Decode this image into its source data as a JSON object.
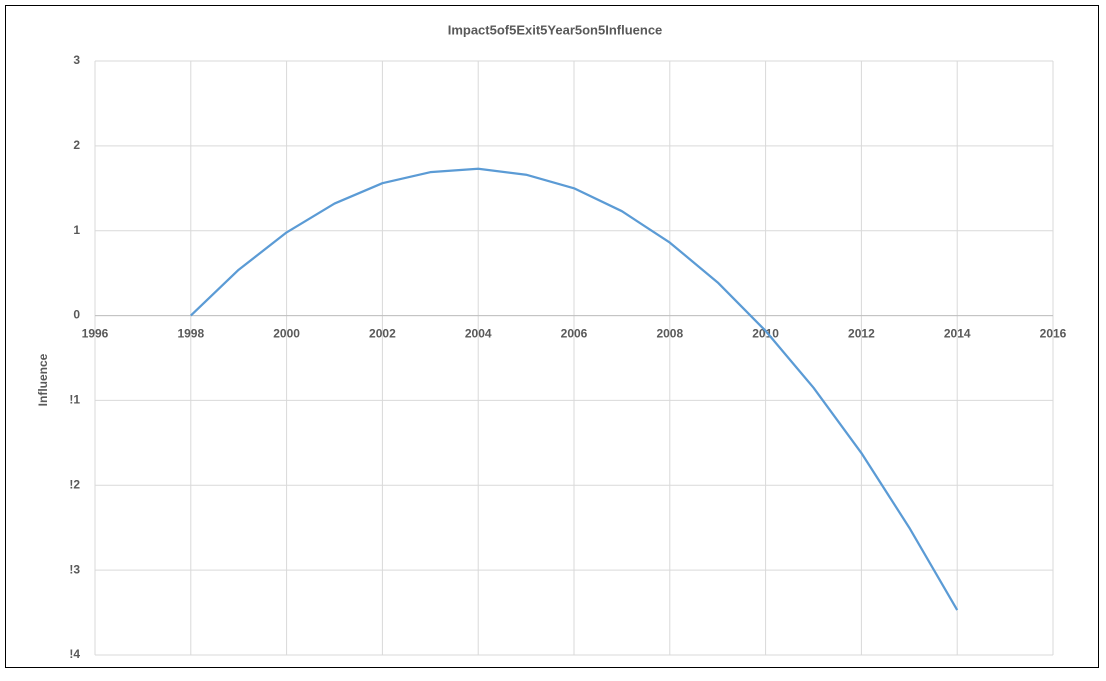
{
  "chart_data": {
    "type": "line",
    "title": "Impact5of5Exit5Year5on5Influence",
    "y_label": "Influence",
    "x": [
      1998,
      1999,
      2000,
      2001,
      2002,
      2003,
      2004,
      2005,
      2006,
      2007,
      2008,
      2009,
      2010,
      2011,
      2012,
      2013,
      2014
    ],
    "values": [
      0,
      0.54,
      0.98,
      1.32,
      1.56,
      1.69,
      1.73,
      1.66,
      1.5,
      1.23,
      0.86,
      0.39,
      -0.18,
      -0.85,
      -1.62,
      -2.5,
      -3.47
    ],
    "color": "#5b9bd5",
    "xlim": [
      1996,
      2016
    ],
    "xticks": [
      1996,
      1998,
      2000,
      2002,
      2004,
      2006,
      2008,
      2010,
      2012,
      2014,
      2016
    ],
    "ylim": [
      -4,
      3
    ],
    "yticks": [
      {
        "value": -4,
        "label": "!4"
      },
      {
        "value": -3,
        "label": "!3"
      },
      {
        "value": -2,
        "label": "!2"
      },
      {
        "value": -1,
        "label": "!1"
      },
      0,
      1,
      2,
      3
    ],
    "grid": true
  }
}
